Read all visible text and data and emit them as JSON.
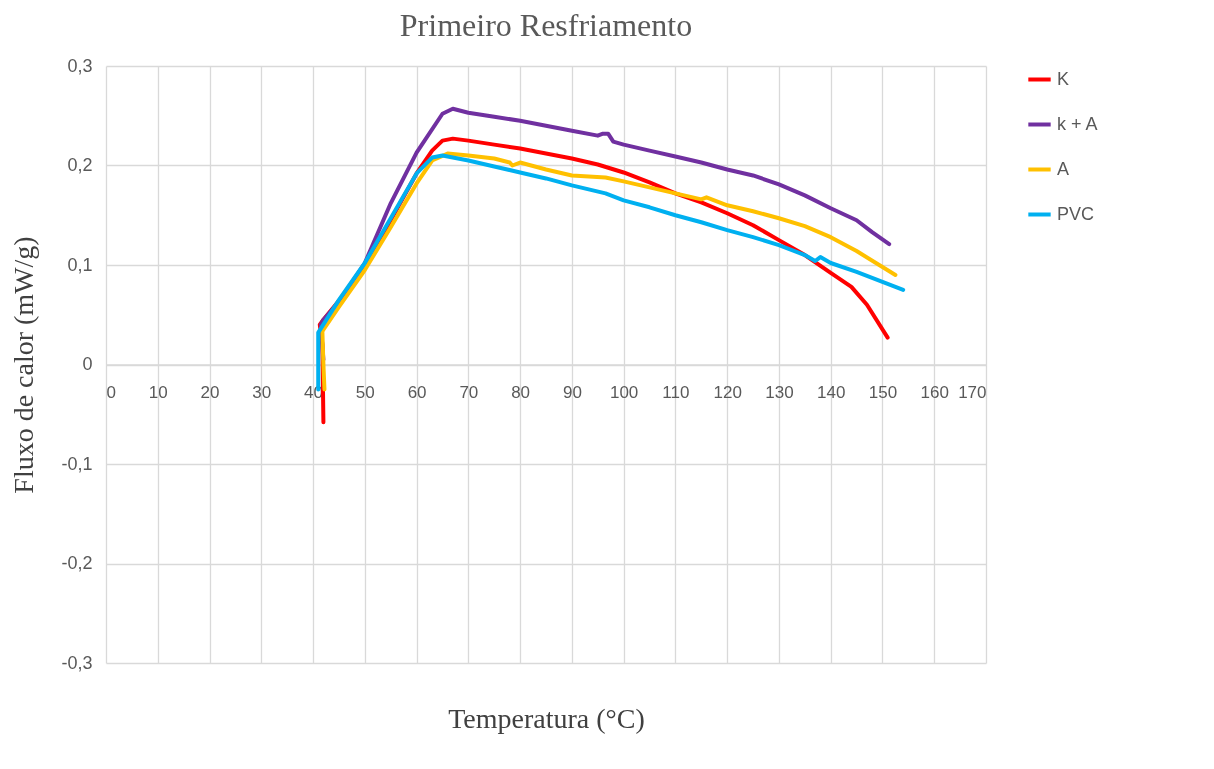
{
  "chart_data": {
    "type": "line",
    "title": "Primeiro Resfriamento",
    "xlabel": "Temperatura (°C)",
    "ylabel": "Fluxo de calor (mW/g)",
    "xlim": [
      0,
      170
    ],
    "xticks": [
      0,
      10,
      20,
      30,
      40,
      50,
      60,
      70,
      80,
      90,
      100,
      110,
      120,
      130,
      140,
      150,
      160,
      170
    ],
    "ylim": [
      -0.3,
      0.3
    ],
    "yticks": [
      {
        "value": -0.3,
        "label": "-0,3"
      },
      {
        "value": -0.2,
        "label": "-0,2"
      },
      {
        "value": -0.1,
        "label": "-0,1"
      },
      0,
      {
        "value": 0.1,
        "label": "0,1"
      },
      {
        "value": 0.2,
        "label": "0,2"
      },
      {
        "value": 0.3,
        "label": "0,3"
      }
    ],
    "grid": true,
    "legend": "right",
    "line_style": "solid",
    "marker": "none",
    "series": [
      {
        "name": "K",
        "color": "#ff0000",
        "x": [
          151,
          147,
          144,
          140,
          135,
          130,
          125,
          120,
          115,
          110,
          105,
          100,
          95,
          90,
          85,
          80,
          75,
          70,
          67,
          65,
          63,
          60,
          55,
          50,
          45,
          42,
          41.3,
          41.8,
          42
        ],
        "values": [
          0.027,
          0.06,
          0.078,
          0.092,
          0.11,
          0.125,
          0.14,
          0.152,
          0.163,
          0.172,
          0.183,
          0.193,
          0.201,
          0.207,
          0.212,
          0.217,
          0.221,
          0.225,
          0.227,
          0.225,
          0.215,
          0.192,
          0.145,
          0.097,
          0.064,
          0.045,
          0.04,
          0.02,
          -0.058
        ]
      },
      {
        "name": "k + A",
        "color": "#7030a0",
        "x": [
          151.3,
          148,
          145,
          140,
          135,
          130,
          125,
          120,
          115,
          110,
          105,
          100,
          98,
          97,
          96,
          95,
          90,
          85,
          80,
          75,
          70,
          67,
          65,
          60,
          55,
          50,
          45,
          42,
          41.5,
          42
        ],
        "values": [
          0.121,
          0.133,
          0.145,
          0.157,
          0.17,
          0.181,
          0.19,
          0.196,
          0.203,
          0.209,
          0.215,
          0.221,
          0.224,
          0.232,
          0.232,
          0.23,
          0.235,
          0.24,
          0.245,
          0.249,
          0.253,
          0.257,
          0.252,
          0.213,
          0.162,
          0.102,
          0.063,
          0.045,
          0.04,
          0.005
        ]
      },
      {
        "name": "A",
        "color": "#ffc000",
        "x": [
          152.5,
          150,
          145,
          140,
          135,
          130,
          125,
          120,
          116,
          115,
          110,
          105,
          100,
          96.5,
          90,
          85,
          80,
          78.5,
          78,
          75,
          70,
          66,
          63,
          60,
          55,
          50,
          45,
          42,
          41.8,
          42,
          42.2
        ],
        "values": [
          0.09,
          0.098,
          0.114,
          0.128,
          0.139,
          0.147,
          0.154,
          0.16,
          0.168,
          0.166,
          0.172,
          0.178,
          0.184,
          0.188,
          0.19,
          0.196,
          0.203,
          0.2,
          0.203,
          0.207,
          0.21,
          0.212,
          0.205,
          0.182,
          0.138,
          0.095,
          0.058,
          0.035,
          0.033,
          0,
          -0.025
        ]
      },
      {
        "name": "PVC",
        "color": "#00b0f0",
        "x": [
          154,
          150,
          145,
          140,
          138,
          137,
          135,
          130,
          125,
          120,
          115,
          110,
          105,
          100,
          96.5,
          90,
          85,
          80,
          75,
          70,
          65,
          63,
          60,
          55,
          50,
          45,
          41,
          41
        ],
        "values": [
          0.075,
          0.083,
          0.093,
          0.102,
          0.108,
          0.104,
          0.11,
          0.12,
          0.128,
          0.135,
          0.143,
          0.15,
          0.158,
          0.165,
          0.172,
          0.18,
          0.187,
          0.193,
          0.199,
          0.205,
          0.21,
          0.208,
          0.192,
          0.147,
          0.102,
          0.065,
          0.032,
          -0.025
        ]
      }
    ]
  }
}
